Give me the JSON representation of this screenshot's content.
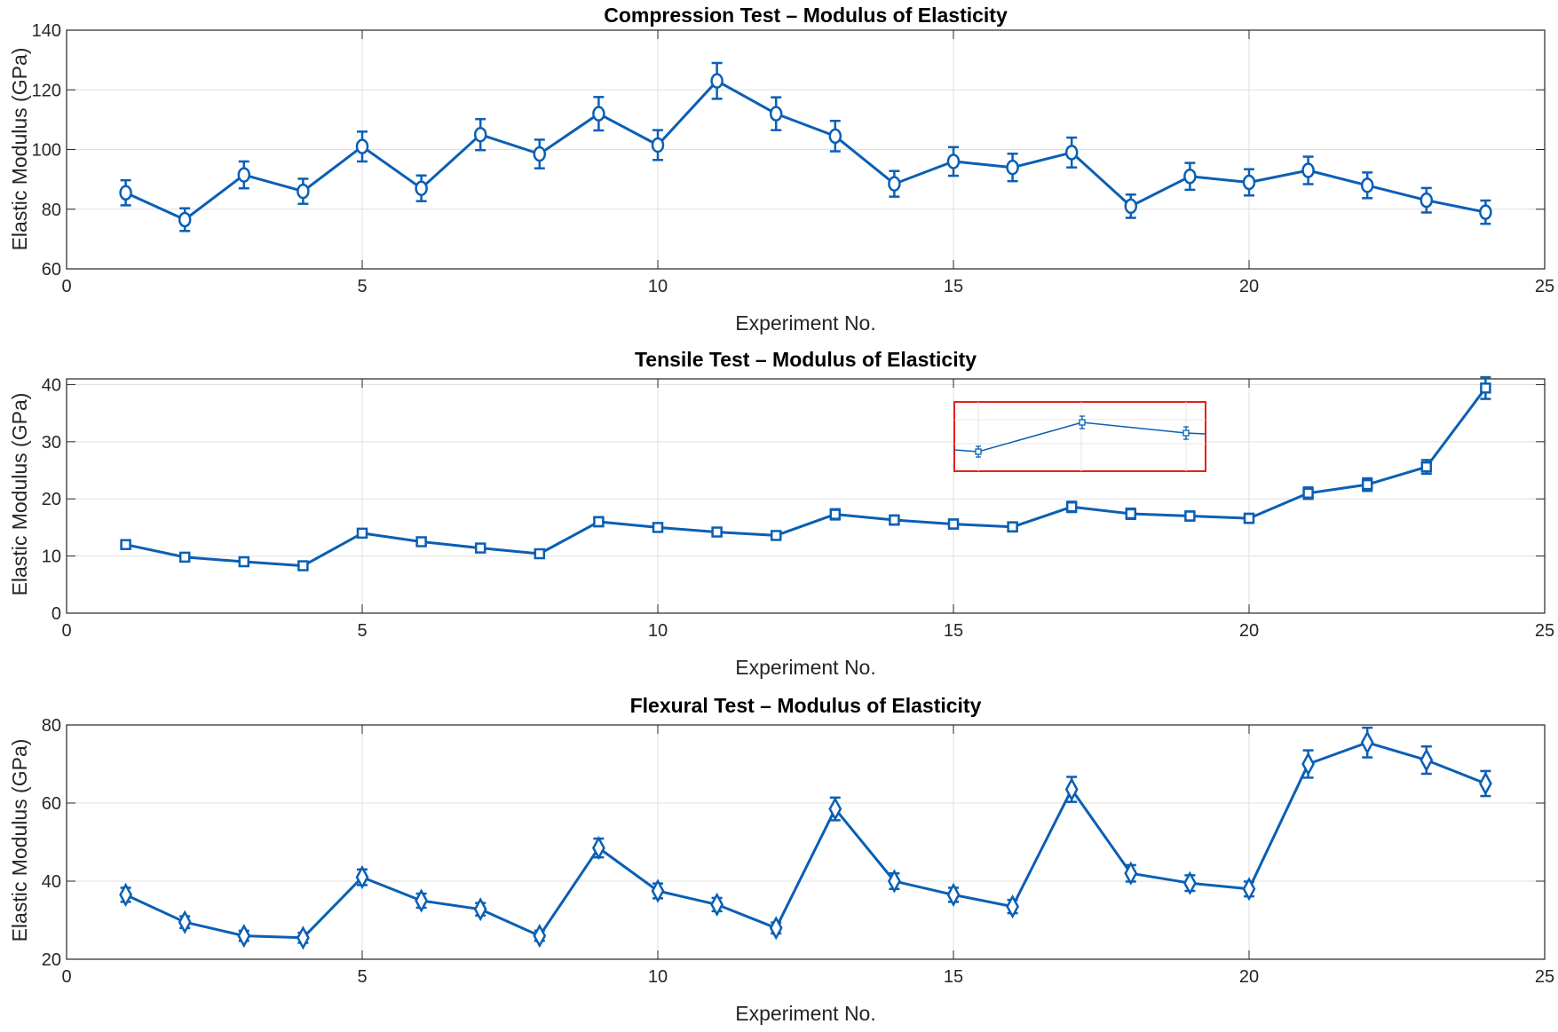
{
  "chart_data": [
    {
      "type": "line",
      "marker": "circle",
      "title": "Compression Test – Modulus of Elasticity",
      "xlabel": "Experiment No.",
      "ylabel": "Elastic Modulus (GPa)",
      "xlim": [
        0,
        25
      ],
      "ylim": [
        60,
        140
      ],
      "xticks": [
        0,
        5,
        10,
        15,
        20,
        25
      ],
      "yticks": [
        60,
        80,
        100,
        120,
        140
      ],
      "grid": true,
      "color": "#0a5fb4",
      "series": [
        {
          "name": "Compression",
          "x": [
            1,
            2,
            3,
            4,
            5,
            6,
            7,
            8,
            9,
            10,
            11,
            12,
            13,
            14,
            15,
            16,
            17,
            18,
            19,
            20,
            21,
            22,
            23,
            24
          ],
          "values": [
            85.5,
            76.5,
            91.5,
            86,
            101,
            87,
            105,
            98.5,
            112,
            101.5,
            123,
            112,
            104.5,
            88.5,
            96,
            94,
            99,
            81,
            91,
            89,
            93,
            88,
            83,
            79
          ],
          "errors": [
            4.2,
            3.8,
            4.5,
            4.2,
            5,
            4.3,
            5.2,
            4.8,
            5.6,
            5,
            6,
            5.5,
            5.1,
            4.3,
            4.8,
            4.6,
            5,
            3.9,
            4.5,
            4.4,
            4.6,
            4.3,
            4.1,
            3.9
          ]
        }
      ]
    },
    {
      "type": "line",
      "marker": "square",
      "title": "Tensile Test – Modulus of Elasticity",
      "xlabel": "Experiment No.",
      "ylabel": "Elastic Modulus (GPa)",
      "xlim": [
        0,
        25
      ],
      "ylim": [
        0,
        41
      ],
      "xticks": [
        0,
        5,
        10,
        15,
        20,
        25
      ],
      "yticks": [
        0,
        10,
        20,
        30,
        40
      ],
      "grid": true,
      "color": "#0a5fb4",
      "highlight_color": "#e8201a",
      "inset": true,
      "series": [
        {
          "name": "Tensile",
          "x": [
            1,
            2,
            3,
            4,
            5,
            6,
            7,
            8,
            9,
            10,
            11,
            12,
            13,
            14,
            15,
            16,
            17,
            18,
            19,
            20,
            21,
            22,
            23,
            24
          ],
          "values": [
            12,
            9.8,
            9,
            8.3,
            14,
            12.5,
            11.4,
            10.4,
            16,
            15,
            14.2,
            13.6,
            17.3,
            16.3,
            15.6,
            15.1,
            18.6,
            17.4,
            17,
            16.6,
            21,
            22.5,
            25.6,
            39.4
          ],
          "errors": [
            0.6,
            0.5,
            0.5,
            0.5,
            0.7,
            0.6,
            0.6,
            0.5,
            0.8,
            0.7,
            0.7,
            0.7,
            0.9,
            0.8,
            0.8,
            0.8,
            0.9,
            0.9,
            0.8,
            0.8,
            1,
            1.1,
            1.2,
            1.9
          ]
        }
      ]
    },
    {
      "type": "line",
      "marker": "diamond",
      "title": "Flexural Test – Modulus of Elasticity",
      "xlabel": "Experiment No.",
      "ylabel": "Elastic Modulus (GPa)",
      "xlim": [
        0,
        25
      ],
      "ylim": [
        20,
        80
      ],
      "xticks": [
        0,
        5,
        10,
        15,
        20,
        25
      ],
      "yticks": [
        20,
        40,
        60,
        80
      ],
      "grid": true,
      "color": "#0a5fb4",
      "series": [
        {
          "name": "Flexural",
          "x": [
            1,
            2,
            3,
            4,
            5,
            6,
            7,
            8,
            9,
            10,
            11,
            12,
            13,
            14,
            15,
            16,
            17,
            18,
            19,
            20,
            21,
            22,
            23,
            24
          ],
          "values": [
            36.5,
            29.5,
            26,
            25.5,
            41,
            35,
            32.8,
            26,
            48.5,
            37.5,
            34,
            28,
            58.5,
            40,
            36.5,
            33.5,
            63.5,
            42,
            39.5,
            38,
            70,
            75.5,
            71,
            65
          ],
          "errors": [
            1.8,
            1.5,
            1.3,
            1.3,
            2,
            1.8,
            1.6,
            1.3,
            2.4,
            1.9,
            1.7,
            1.4,
            2.9,
            2,
            1.8,
            1.7,
            3.2,
            2.1,
            2,
            1.9,
            3.5,
            3.8,
            3.5,
            3.2
          ]
        }
      ]
    }
  ]
}
